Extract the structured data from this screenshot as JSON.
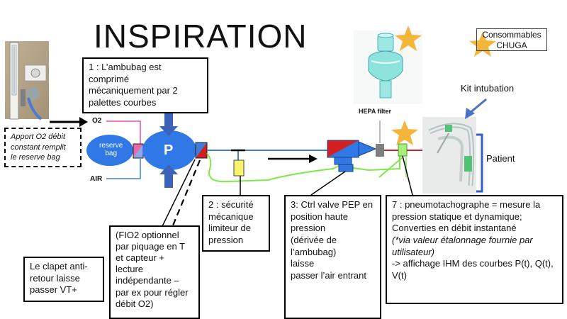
{
  "title": "INSPIRATION",
  "consommables": {
    "line1": "Consommables",
    "line2": "CHUGA"
  },
  "labels": {
    "kit_intubation": "Kit intubation",
    "patient": "Patient",
    "hepa_filter": "HEPA filter",
    "o2": "O2",
    "air": "AIR",
    "reserve_bag_line1": "reserve",
    "reserve_bag_line2": "bag",
    "pressure_p": "P"
  },
  "boxes": {
    "apport_o2": [
      "Apport O2 débit",
      "constant remplit",
      "le reserve bag"
    ],
    "ambubag": [
      "1 : L’ambubag est",
      "comprimé",
      "mécaniquement par 2",
      "palettes courbes"
    ],
    "clapet": [
      "Le clapet anti-",
      "retour laisse",
      "passer VT+"
    ],
    "fio2": [
      "(FIO2 optionnel",
      "par piquage en T",
      "et capteur +",
      "lecture",
      "indépendante –",
      "par ex pour régler",
      "débit O2)"
    ],
    "securite": [
      "2 : sécurité",
      "mécanique",
      "limiteur de",
      "pression"
    ],
    "valve_pep": [
      "3: Ctrl valve PEP en",
      "position haute",
      "pression",
      "(dérivée de",
      "l’ambubag)",
      "laisse",
      "passer l’air entrant"
    ],
    "pneumo": {
      "l1": "7 : pneumotachographe = mesure la",
      "l2": "pression statique et dynamique;",
      "l3": "Converties en débit instantané",
      "l4": "(*via valeur étalonnage fournie par",
      "l5": "utilisateur)",
      "l6": "-> affichage IHM des courbes P(t), Q(t),",
      "l7": "V(t)"
    }
  },
  "colors": {
    "blue_circuit": "#3d7fd6",
    "circle_fill": "#2f78e6",
    "red_valve": "#d42020",
    "green_line": "#7ee84a",
    "yellow_sensor": "#f7f36b",
    "gold_star": "#f4b63a",
    "pink_o2": "#e0509a"
  },
  "icons": [
    "gold-star-icon",
    "arrow-right-icon",
    "arrow-down-icon",
    "arrow-up-icon"
  ]
}
